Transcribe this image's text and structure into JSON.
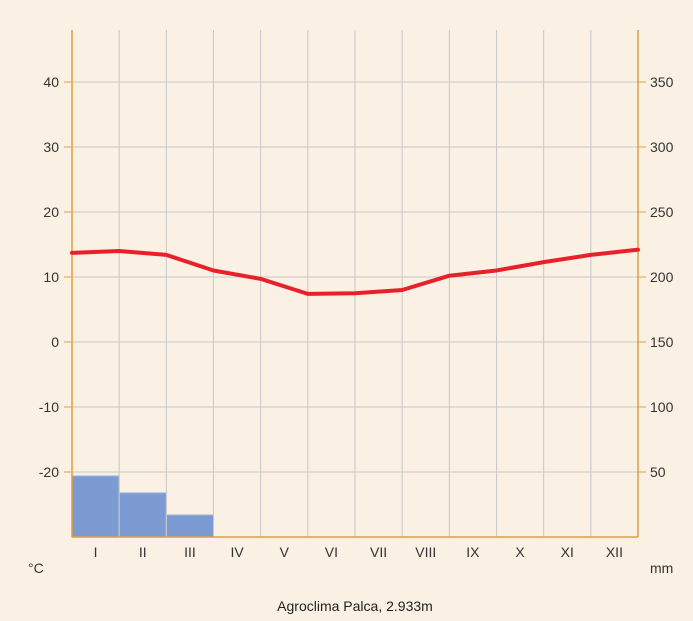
{
  "chart_data": {
    "type": "climate-diagram",
    "caption": "Agroclima Palca, 2.933m",
    "categories": [
      "I",
      "II",
      "III",
      "IV",
      "V",
      "VI",
      "VII",
      "VIII",
      "IX",
      "X",
      "XI",
      "XII"
    ],
    "left_axis": {
      "unit": "°C",
      "min": -30,
      "max": 48,
      "ticks": [
        -20,
        -10,
        0,
        10,
        20,
        30,
        40
      ]
    },
    "right_axis": {
      "unit": "mm",
      "min": 0,
      "max": 390,
      "ticks": [
        50,
        100,
        150,
        200,
        250,
        300,
        350
      ]
    },
    "series": [
      {
        "type": "bar",
        "axis": "right",
        "values": [
          47,
          34,
          17,
          0,
          0,
          0,
          0,
          0,
          0,
          0,
          0,
          0
        ]
      },
      {
        "type": "line",
        "axis": "left",
        "values": [
          14.0,
          13.4,
          11.0,
          9.7,
          7.4,
          7.5,
          8.0,
          10.2,
          11.0,
          12.3,
          13.4,
          14.0
        ],
        "start": 13.7,
        "end": 14.2
      }
    ],
    "grid": true,
    "colors": {
      "temperature": "#e8202a",
      "precipitation": "#7b9bd2",
      "axis": "#e0a040",
      "grid": "#c8c8c8",
      "background": "#fbf0e4"
    }
  }
}
